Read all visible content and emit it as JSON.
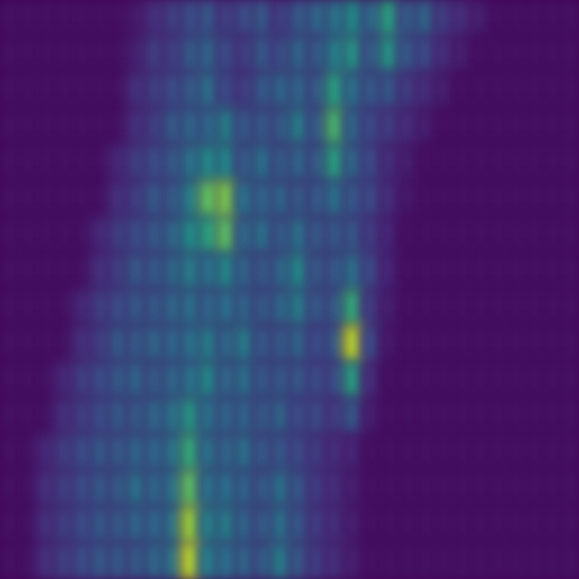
{
  "chart_data": {
    "type": "heatmap",
    "xlim": [
      0,
      32
    ],
    "ylim": [
      0,
      16
    ],
    "tick_labels": false,
    "grid": false,
    "color_range": [
      0,
      1
    ],
    "cells": [
      [
        0.05,
        0.05,
        0.05,
        0.05,
        0.05,
        0.05,
        0.05,
        0.08,
        0.15,
        0.2,
        0.25,
        0.3,
        0.2,
        0.25,
        0.3,
        0.2,
        0.3,
        0.35,
        0.4,
        0.5,
        0.35,
        0.6,
        0.3,
        0.35,
        0.2,
        0.15,
        0.1,
        0.05,
        0.05,
        0.05,
        0.05,
        0.05
      ],
      [
        0.05,
        0.05,
        0.05,
        0.05,
        0.05,
        0.05,
        0.05,
        0.1,
        0.2,
        0.2,
        0.3,
        0.35,
        0.25,
        0.2,
        0.3,
        0.25,
        0.35,
        0.3,
        0.45,
        0.55,
        0.3,
        0.55,
        0.3,
        0.25,
        0.15,
        0.1,
        0.05,
        0.05,
        0.05,
        0.05,
        0.05,
        0.05
      ],
      [
        0.05,
        0.05,
        0.05,
        0.05,
        0.05,
        0.05,
        0.05,
        0.15,
        0.2,
        0.25,
        0.3,
        0.4,
        0.25,
        0.2,
        0.3,
        0.35,
        0.35,
        0.3,
        0.6,
        0.4,
        0.3,
        0.3,
        0.2,
        0.15,
        0.1,
        0.05,
        0.05,
        0.05,
        0.05,
        0.05,
        0.05,
        0.05
      ],
      [
        0.05,
        0.05,
        0.05,
        0.05,
        0.05,
        0.05,
        0.05,
        0.15,
        0.2,
        0.3,
        0.35,
        0.35,
        0.45,
        0.3,
        0.3,
        0.3,
        0.45,
        0.3,
        0.7,
        0.35,
        0.25,
        0.2,
        0.15,
        0.1,
        0.05,
        0.05,
        0.05,
        0.05,
        0.05,
        0.05,
        0.05,
        0.05
      ],
      [
        0.05,
        0.05,
        0.05,
        0.05,
        0.05,
        0.05,
        0.12,
        0.2,
        0.25,
        0.3,
        0.4,
        0.5,
        0.5,
        0.3,
        0.4,
        0.3,
        0.35,
        0.3,
        0.6,
        0.35,
        0.25,
        0.15,
        0.1,
        0.05,
        0.05,
        0.05,
        0.05,
        0.05,
        0.05,
        0.05,
        0.05,
        0.05
      ],
      [
        0.05,
        0.05,
        0.05,
        0.05,
        0.05,
        0.05,
        0.15,
        0.2,
        0.3,
        0.3,
        0.45,
        0.75,
        0.8,
        0.4,
        0.35,
        0.35,
        0.3,
        0.3,
        0.4,
        0.3,
        0.25,
        0.15,
        0.08,
        0.05,
        0.05,
        0.05,
        0.05,
        0.05,
        0.05,
        0.05,
        0.05,
        0.05
      ],
      [
        0.05,
        0.05,
        0.05,
        0.05,
        0.05,
        0.12,
        0.2,
        0.25,
        0.3,
        0.35,
        0.5,
        0.6,
        0.75,
        0.35,
        0.4,
        0.3,
        0.4,
        0.3,
        0.3,
        0.3,
        0.2,
        0.12,
        0.05,
        0.05,
        0.05,
        0.05,
        0.05,
        0.05,
        0.05,
        0.05,
        0.05,
        0.05
      ],
      [
        0.05,
        0.05,
        0.05,
        0.05,
        0.05,
        0.15,
        0.2,
        0.3,
        0.3,
        0.35,
        0.45,
        0.4,
        0.5,
        0.35,
        0.3,
        0.35,
        0.5,
        0.3,
        0.3,
        0.4,
        0.25,
        0.12,
        0.05,
        0.05,
        0.05,
        0.05,
        0.05,
        0.05,
        0.05,
        0.05,
        0.05,
        0.05
      ],
      [
        0.05,
        0.05,
        0.05,
        0.05,
        0.12,
        0.2,
        0.25,
        0.3,
        0.3,
        0.35,
        0.4,
        0.35,
        0.4,
        0.35,
        0.3,
        0.35,
        0.45,
        0.3,
        0.3,
        0.65,
        0.2,
        0.1,
        0.05,
        0.05,
        0.05,
        0.05,
        0.05,
        0.05,
        0.05,
        0.05,
        0.05,
        0.05
      ],
      [
        0.05,
        0.05,
        0.05,
        0.05,
        0.15,
        0.2,
        0.3,
        0.3,
        0.35,
        0.35,
        0.4,
        0.45,
        0.35,
        0.45,
        0.3,
        0.3,
        0.35,
        0.25,
        0.3,
        0.9,
        0.25,
        0.08,
        0.05,
        0.05,
        0.05,
        0.05,
        0.05,
        0.05,
        0.05,
        0.05,
        0.05,
        0.05
      ],
      [
        0.05,
        0.05,
        0.05,
        0.12,
        0.2,
        0.25,
        0.3,
        0.35,
        0.3,
        0.35,
        0.4,
        0.5,
        0.35,
        0.4,
        0.3,
        0.3,
        0.3,
        0.25,
        0.25,
        0.6,
        0.15,
        0.05,
        0.05,
        0.05,
        0.05,
        0.05,
        0.05,
        0.05,
        0.05,
        0.05,
        0.05,
        0.05
      ],
      [
        0.05,
        0.05,
        0.05,
        0.15,
        0.2,
        0.25,
        0.3,
        0.3,
        0.35,
        0.4,
        0.55,
        0.4,
        0.35,
        0.35,
        0.3,
        0.35,
        0.25,
        0.25,
        0.2,
        0.3,
        0.1,
        0.05,
        0.05,
        0.05,
        0.05,
        0.05,
        0.05,
        0.05,
        0.05,
        0.05,
        0.05,
        0.05
      ],
      [
        0.05,
        0.05,
        0.12,
        0.2,
        0.25,
        0.3,
        0.3,
        0.35,
        0.35,
        0.4,
        0.65,
        0.4,
        0.35,
        0.4,
        0.3,
        0.3,
        0.25,
        0.2,
        0.15,
        0.12,
        0.05,
        0.05,
        0.05,
        0.05,
        0.05,
        0.05,
        0.05,
        0.05,
        0.05,
        0.05,
        0.05,
        0.05
      ],
      [
        0.05,
        0.05,
        0.15,
        0.2,
        0.25,
        0.3,
        0.3,
        0.4,
        0.35,
        0.4,
        0.75,
        0.4,
        0.4,
        0.35,
        0.3,
        0.4,
        0.3,
        0.2,
        0.15,
        0.1,
        0.05,
        0.05,
        0.05,
        0.05,
        0.05,
        0.05,
        0.05,
        0.05,
        0.05,
        0.05,
        0.05,
        0.05
      ],
      [
        0.05,
        0.05,
        0.15,
        0.2,
        0.25,
        0.3,
        0.3,
        0.35,
        0.35,
        0.4,
        0.85,
        0.45,
        0.45,
        0.35,
        0.3,
        0.4,
        0.3,
        0.2,
        0.15,
        0.1,
        0.05,
        0.05,
        0.05,
        0.05,
        0.05,
        0.05,
        0.05,
        0.05,
        0.05,
        0.05,
        0.05,
        0.05
      ],
      [
        0.05,
        0.05,
        0.15,
        0.2,
        0.25,
        0.3,
        0.3,
        0.3,
        0.35,
        0.4,
        0.9,
        0.45,
        0.4,
        0.35,
        0.3,
        0.45,
        0.3,
        0.2,
        0.15,
        0.1,
        0.05,
        0.05,
        0.05,
        0.05,
        0.05,
        0.05,
        0.05,
        0.05,
        0.05,
        0.05,
        0.05,
        0.05
      ]
    ]
  }
}
